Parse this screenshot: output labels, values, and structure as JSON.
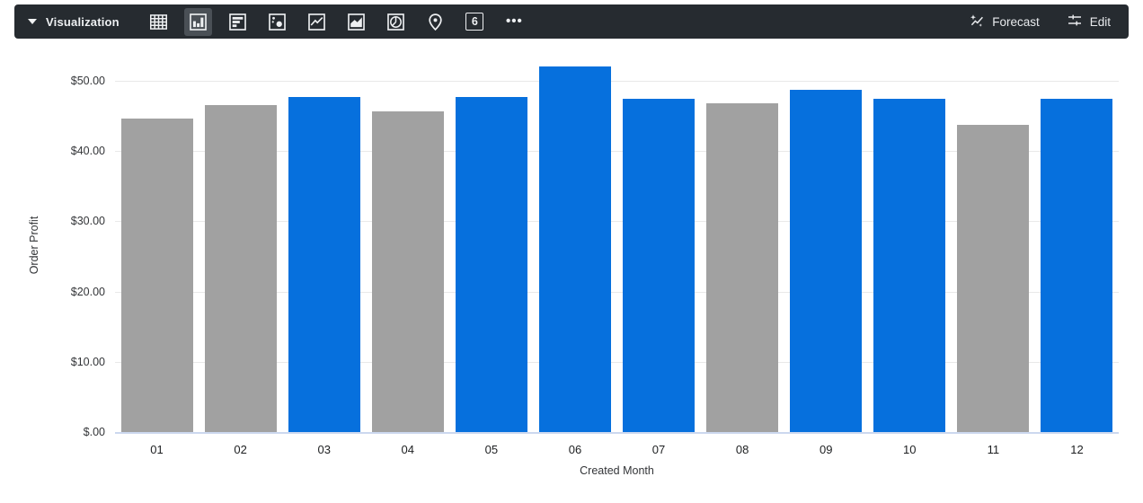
{
  "toolbar": {
    "section_label": "Visualization",
    "selected_viz": "column",
    "viz_types": [
      "table",
      "column",
      "bar",
      "scatter",
      "line",
      "area",
      "pie",
      "map",
      "single-value",
      "more"
    ],
    "single_value_glyph": "6",
    "more_glyph": "•••",
    "forecast_label": "Forecast",
    "edit_label": "Edit",
    "colors": {
      "bar_bg": "#262b30",
      "selected_bg": "#4a5056",
      "icon": "#eef0f2"
    }
  },
  "chart_data": {
    "type": "bar",
    "title": "",
    "xlabel": "Created Month",
    "ylabel": "Order Profit",
    "categories": [
      "01",
      "02",
      "03",
      "04",
      "05",
      "06",
      "07",
      "08",
      "09",
      "10",
      "11",
      "12"
    ],
    "values": [
      44.6,
      46.6,
      47.7,
      45.7,
      47.7,
      52.1,
      47.4,
      46.8,
      48.7,
      47.4,
      43.7,
      47.4
    ],
    "bar_colors": [
      "gray",
      "gray",
      "blue",
      "gray",
      "blue",
      "blue",
      "blue",
      "gray",
      "blue",
      "blue",
      "gray",
      "blue"
    ],
    "palette": {
      "blue": "#0670dd",
      "gray": "#a1a1a1"
    },
    "y_ticks": [
      {
        "value": 0,
        "label": "$.00"
      },
      {
        "value": 10,
        "label": "$10.00"
      },
      {
        "value": 20,
        "label": "$20.00"
      },
      {
        "value": 30,
        "label": "$30.00"
      },
      {
        "value": 40,
        "label": "$40.00"
      },
      {
        "value": 50,
        "label": "$50.00"
      }
    ],
    "ylim": [
      0,
      55.8
    ],
    "grid": true,
    "legend": "none"
  }
}
